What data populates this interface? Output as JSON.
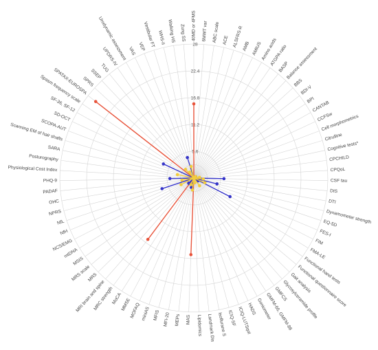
{
  "chart_data": {
    "type": "radar",
    "title": "",
    "radial_ticks": [
      "5.6",
      "11.2",
      "16.8",
      "22.4",
      "28"
    ],
    "rmax": 28,
    "grid": true,
    "categories": [
      "40MD or 4FMS",
      "6MWT var",
      "ABC scale",
      "ACE",
      "ALSFRS-R",
      "AMB",
      "AMIUS",
      "Amino acids",
      "ATGPA ratio",
      "BASP",
      "Balance assessment",
      "BBS",
      "BDI-V",
      "BPI",
      "CANTAB",
      "CCFSw",
      "Cell morphometrics",
      "Citrulline",
      "Cognitive tests*",
      "CPCHILD",
      "CPQoL",
      "CSF tau",
      "DIS",
      "DTI",
      "Dynamometer strength",
      "EQ-5D",
      "FES-I",
      "FIM",
      "FMA-LE",
      "Functional hand tests",
      "Functional questionnaire score",
      "Gait analysis",
      "Glycosylceramide profile",
      "GMFCS",
      "GMFM-66, GMFM-88",
      "Goniometer",
      "HADS",
      "ICIQ-LUTSqol",
      "ICIQ-SF",
      "Isoflurane S",
      "Landmark Dis",
      "Lipidomics",
      "MAS",
      "MEPs",
      "MFI-20",
      "MFIS",
      "miniAS",
      "MOFAQ",
      "MMSE",
      "MoCA",
      "MRC strength",
      "MRI brain and spine",
      "MRS",
      "MRS scale",
      "MSIS",
      "mtDNA",
      "NCS/EMG",
      "NfH",
      "NfL",
      "NPRS",
      "OHC",
      "PADAF",
      "PHQ-9",
      "Physiological Cost Index",
      "Posturography",
      "SARA",
      "Scanning EM of hair shafts",
      "SCOPA-AUT",
      "SD-OCT",
      "SF-36, SF-12",
      "Spasm frequency scale",
      "SPATAX-EUROSPA",
      "SPRS",
      "SSEP",
      "TUG",
      "UPDRS-IV",
      "Urodynamic assessment",
      "VAS",
      "VEP",
      "Vestibular FT",
      "WHS-II",
      "Walking HS",
      "Zung SS"
    ],
    "series": [
      {
        "color": "#e8533a",
        "values": [
          {
            "category": "40MD or 4FMS",
            "value": 15.5
          },
          {
            "category": "MAS",
            "value": 16.0
          },
          {
            "category": "MRC strength",
            "value": 16.0
          },
          {
            "category": "SPATAX-EUROSPA",
            "value": 26.0
          }
        ]
      },
      {
        "color": "#3433c7",
        "values": [
          {
            "category": "BDI-V",
            "value": 0.5
          },
          {
            "category": "CSF tau",
            "value": 6.3
          },
          {
            "category": "Dynamometer strength",
            "value": 5.0
          },
          {
            "category": "FIM",
            "value": 8.5
          },
          {
            "category": "Functional hand tests",
            "value": 1.0
          },
          {
            "category": "MFIS",
            "value": 2.0
          },
          {
            "category": "MRI brain and spine",
            "value": 1.5
          },
          {
            "category": "MRS",
            "value": 1.5
          },
          {
            "category": "NfL",
            "value": 7.0
          },
          {
            "category": "PHQ-9",
            "value": 5.0
          },
          {
            "category": "SD-OCT",
            "value": 7.0
          },
          {
            "category": "Vestibular FT",
            "value": 4.5
          }
        ]
      },
      {
        "color": "#f2cc3c",
        "values": [
          {
            "category": "BBS",
            "value": 0.5
          },
          {
            "category": "CANTAB",
            "value": 0.3
          },
          {
            "category": "CPCHILD",
            "value": 1.2
          },
          {
            "category": "DIS",
            "value": 2.0
          },
          {
            "category": "FES-I",
            "value": 2.5
          },
          {
            "category": "GMFCS",
            "value": 2.0
          },
          {
            "category": "Isoflurane S",
            "value": 1.0
          },
          {
            "category": "MEPs",
            "value": 2.5
          },
          {
            "category": "MOFAQ",
            "value": 1.5
          },
          {
            "category": "NCS/EMG",
            "value": 3.0
          },
          {
            "category": "OHC",
            "value": 2.5
          },
          {
            "category": "SARA",
            "value": 3.5
          },
          {
            "category": "SSEP",
            "value": 2.5
          },
          {
            "category": "UPDRS-IV",
            "value": 1.5
          },
          {
            "category": "WHS-II",
            "value": 2.5
          }
        ]
      }
    ]
  }
}
